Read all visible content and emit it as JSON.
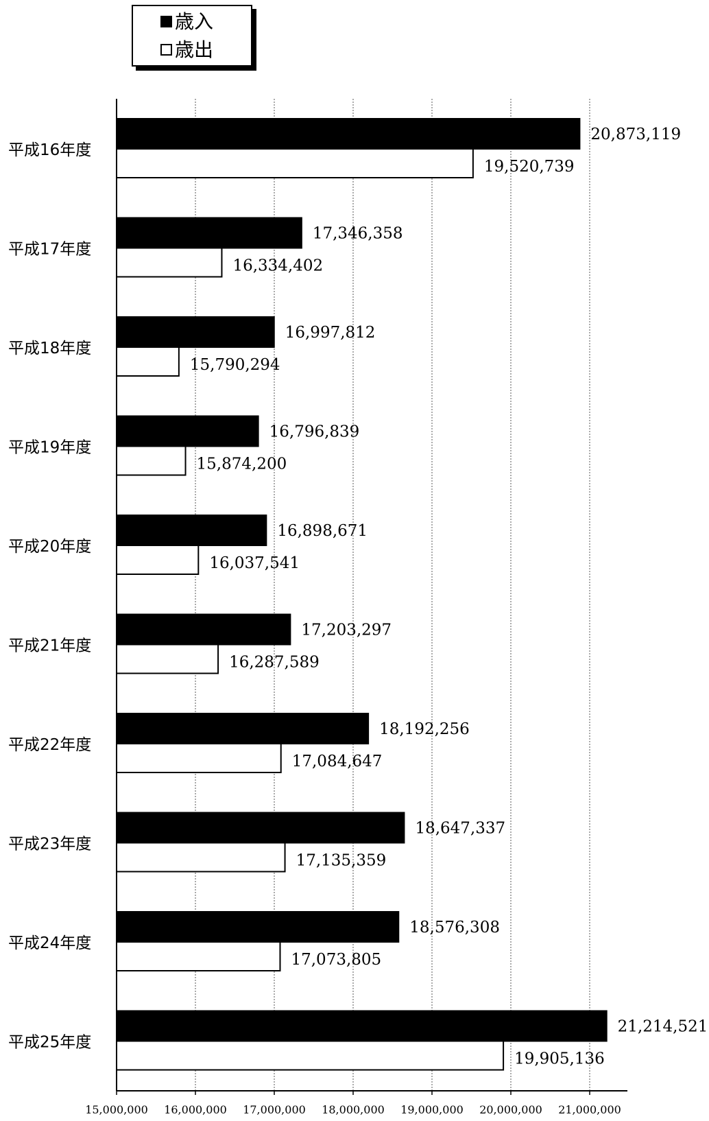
{
  "chart_data": {
    "type": "bar",
    "orientation": "horizontal",
    "categories": [
      "平成16年度",
      "平成17年度",
      "平成18年度",
      "平成19年度",
      "平成20年度",
      "平成21年度",
      "平成22年度",
      "平成23年度",
      "平成24年度",
      "平成25年度"
    ],
    "series": [
      {
        "name": "歳入",
        "color": "#000000",
        "fill": "solid",
        "values": [
          20873119,
          17346358,
          16997812,
          16796839,
          16898671,
          17203297,
          18192256,
          18647337,
          18576308,
          21214521
        ],
        "labels": [
          "20,873,119",
          "17,346,358",
          "16,997,812",
          "16,796,839",
          "16,898,671",
          "17,203,297",
          "18,192,256",
          "18,647,337",
          "18,576,308",
          "21,214,521"
        ]
      },
      {
        "name": "歳出",
        "color": "#ffffff",
        "fill": "outline",
        "values": [
          19520739,
          16334402,
          15790294,
          15874200,
          16037541,
          16287589,
          17084647,
          17135359,
          17073805,
          19905136
        ],
        "labels": [
          "19,520,739",
          "16,334,402",
          "15,790,294",
          "15,874,200",
          "16,037,541",
          "16,287,589",
          "17,084,647",
          "17,135,359",
          "17,073,805",
          "19,905,136"
        ]
      }
    ],
    "xlim": [
      15000000,
      21500000
    ],
    "xticks": [
      15000000,
      16000000,
      17000000,
      18000000,
      19000000,
      20000000,
      21000000
    ],
    "xtick_labels": [
      "15,000,000",
      "16,000,000",
      "17,000,000",
      "18,000,000",
      "19,000,000",
      "20,000,000",
      "21,000,000"
    ],
    "grid": "vertical-dotted",
    "legend": {
      "position": "top-left",
      "marker_filled": "■",
      "marker_outline": "□"
    }
  }
}
